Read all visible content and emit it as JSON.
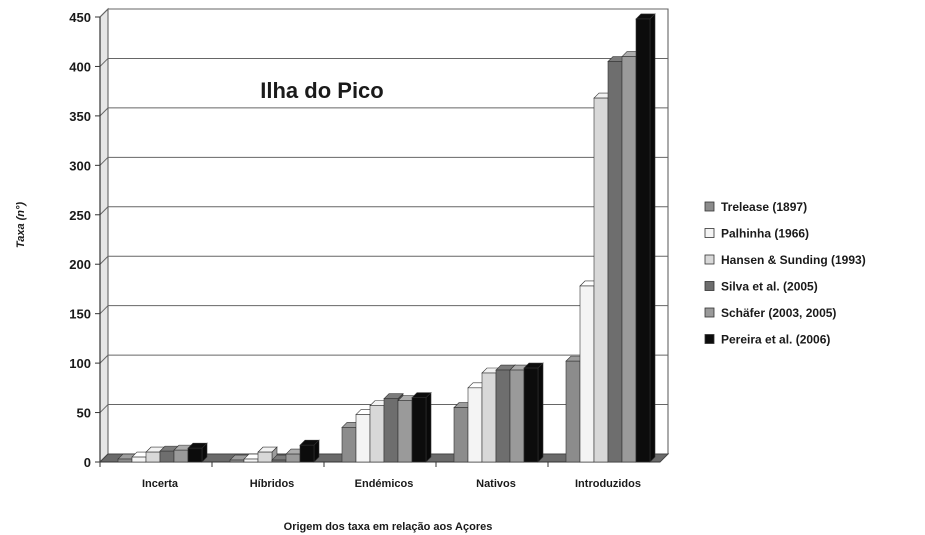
{
  "chart_data": {
    "type": "bar",
    "title": "Ilha do Pico",
    "xlabel": "Origem dos taxa em relação aos Açores",
    "ylabel": "Taxa (n°)",
    "ylim": [
      0,
      450
    ],
    "yticks": [
      0,
      50,
      100,
      150,
      200,
      250,
      300,
      350,
      400,
      450
    ],
    "grid": true,
    "legend_position": "right",
    "categories": [
      "Incerta",
      "Híbridos",
      "Endémicos",
      "Nativos",
      "Introduzidos"
    ],
    "series": [
      {
        "name": "Trelease (1897)",
        "color": "#8c8c8c",
        "values": [
          3,
          2,
          35,
          55,
          102
        ]
      },
      {
        "name": "Palhinha (1966)",
        "color": "#f4f4f4",
        "values": [
          5,
          3,
          48,
          75,
          178
        ]
      },
      {
        "name": "Hansen & Sunding (1993)",
        "color": "#d8d8d8",
        "values": [
          10,
          10,
          57,
          90,
          368
        ]
      },
      {
        "name": "Silva et al. (2005)",
        "color": "#6e6e6e",
        "values": [
          11,
          2,
          64,
          93,
          405
        ]
      },
      {
        "name": "Schäfer (2003, 2005)",
        "color": "#9a9a9a",
        "values": [
          12,
          8,
          62,
          93,
          410
        ]
      },
      {
        "name": "Pereira et al. (2006)",
        "color": "#0c0c0c",
        "values": [
          14,
          17,
          65,
          95,
          448
        ]
      }
    ]
  }
}
